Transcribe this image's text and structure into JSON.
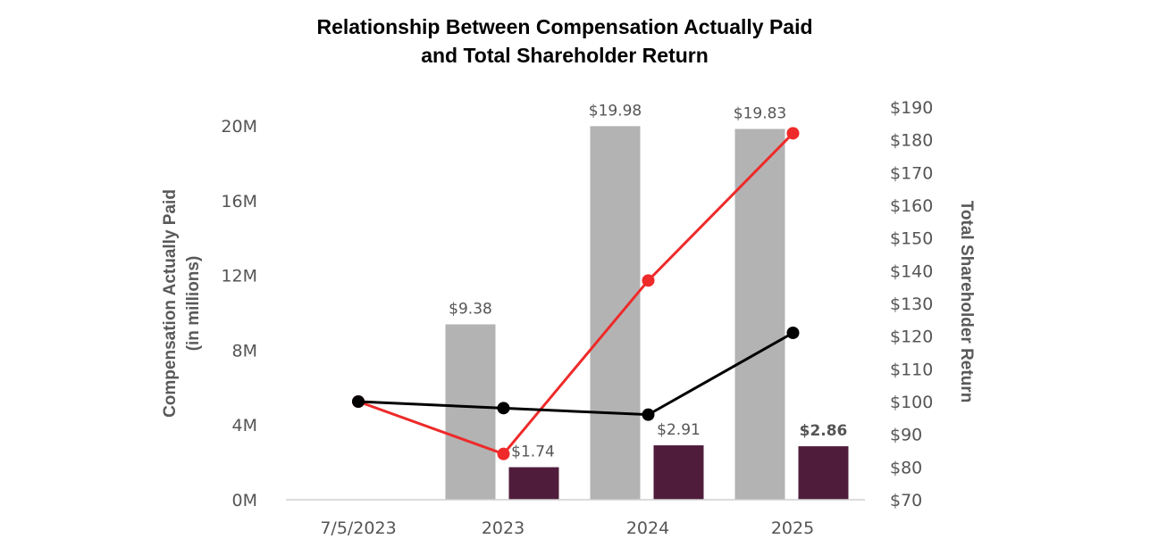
{
  "chart_data": {
    "type": "bar",
    "title_line1": "Relationship Between Compensation Actually Paid",
    "title_line2": "and Total Shareholder Return",
    "categories": [
      "7/5/2023",
      "2023",
      "2024",
      "2025"
    ],
    "series": [
      {
        "kind": "bar",
        "axis": "left",
        "color": "#b3b3b3",
        "values": [
          null,
          9.38,
          19.98,
          19.83
        ],
        "labels": [
          "",
          "$9.38",
          "$19.98",
          "$19.83"
        ]
      },
      {
        "kind": "bar",
        "axis": "left",
        "color": "#4f1d3b",
        "values": [
          null,
          1.74,
          2.91,
          2.86
        ],
        "labels": [
          "",
          "$1.74",
          "$2.91",
          "$2.86"
        ],
        "bold_last": true
      },
      {
        "kind": "line",
        "axis": "right",
        "color": "#ee2a2a",
        "values": [
          100,
          84,
          137,
          182
        ]
      },
      {
        "kind": "line",
        "axis": "right",
        "color": "#000000",
        "values": [
          100,
          98,
          96,
          121
        ]
      }
    ],
    "y_left": {
      "label_line1": "Compensation Actually Paid",
      "label_line2": "(in millions)",
      "min": 0,
      "max": 21,
      "ticks": [
        0,
        4,
        8,
        12,
        16,
        20
      ],
      "tick_labels": [
        "0M",
        "4M",
        "8M",
        "12M",
        "16M",
        "20M"
      ]
    },
    "y_right": {
      "label": "Total Shareholder Return",
      "min": 70,
      "max": 190,
      "ticks": [
        70,
        80,
        90,
        100,
        110,
        120,
        130,
        140,
        150,
        160,
        170,
        180,
        190
      ],
      "tick_labels": [
        "$70",
        "$80",
        "$90",
        "$100",
        "$110",
        "$120",
        "$130",
        "$140",
        "$150",
        "$160",
        "$170",
        "$180",
        "$190"
      ]
    },
    "grid": false,
    "legend": "none"
  }
}
